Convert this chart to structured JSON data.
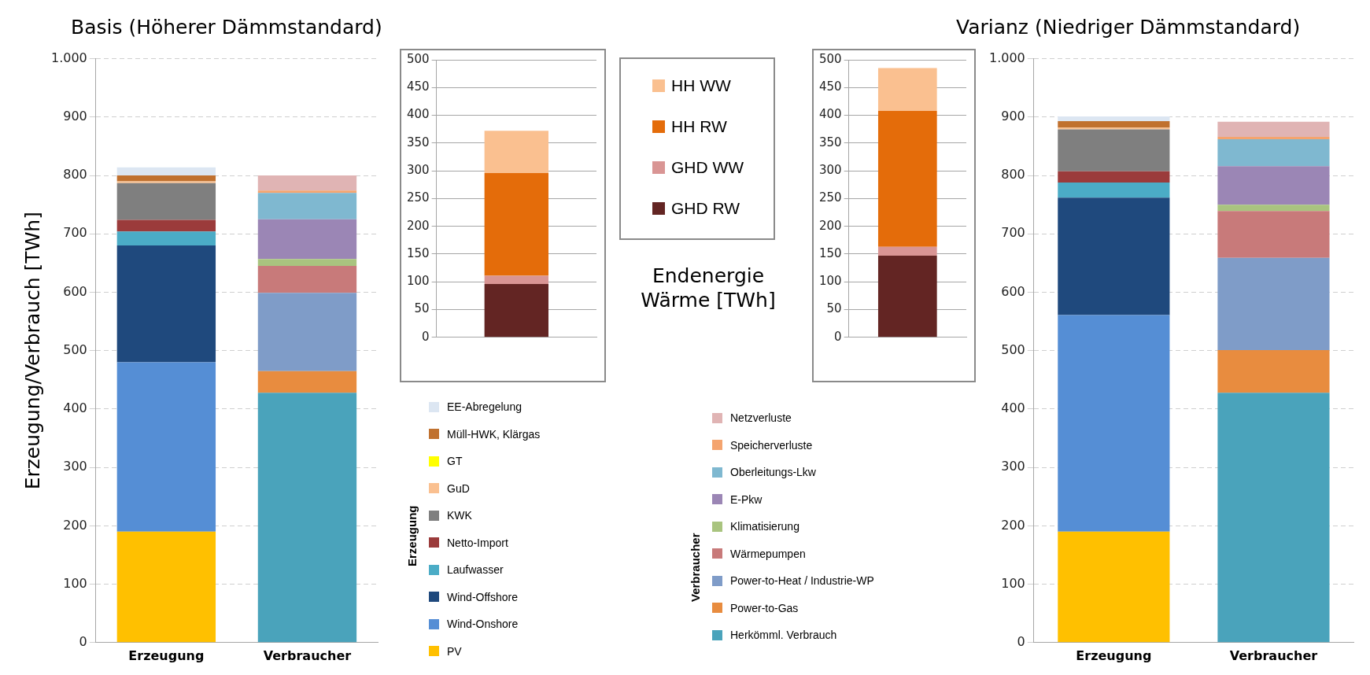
{
  "chart_data": [
    {
      "type": "bar",
      "title": "Basis (Höherer Dämmstandard)",
      "ylabel": "Erzeugung/Verbrauch [TWh]",
      "categories": [
        "Erzeugung",
        "Verbraucher"
      ],
      "stacked": true,
      "ylim": [
        0,
        1000
      ],
      "yticks": [
        0,
        100,
        200,
        300,
        400,
        500,
        600,
        700,
        800,
        900,
        {
          "value": 1000,
          "label": "1.000"
        }
      ],
      "grid": "y",
      "legend": "right",
      "annotations": [
        "Erzeugung",
        "Verbraucher"
      ],
      "series": [
        {
          "name": "PV",
          "color": "#ffc000",
          "values": [
            190,
            null
          ]
        },
        {
          "name": "Wind-Onshore",
          "color": "#558ed5",
          "values": [
            290,
            null
          ]
        },
        {
          "name": "Wind-Offshore",
          "color": "#1f497d",
          "values": [
            200,
            null
          ]
        },
        {
          "name": "Laufwasser",
          "color": "#4bacc6",
          "values": [
            24,
            null
          ]
        },
        {
          "name": "Netto-Import",
          "color": "#9b3b3b",
          "values": [
            20,
            null
          ]
        },
        {
          "name": "KWK",
          "color": "#7f7f7f",
          "values": [
            63,
            null
          ]
        },
        {
          "name": "GuD",
          "color": "#fac090",
          "values": [
            3,
            null
          ]
        },
        {
          "name": "GT",
          "color": "#ffff00",
          "values": [
            0,
            null
          ]
        },
        {
          "name": "Müll-HWK, Klärgas",
          "color": "#c0712f",
          "values": [
            10,
            null
          ]
        },
        {
          "name": "EE-Abregelung",
          "color": "#dce6f2",
          "values": [
            14,
            null
          ]
        },
        {
          "name": "Herkömml. Verbrauch",
          "color": "#4aa3bb",
          "values": [
            null,
            428
          ]
        },
        {
          "name": "Power-to-Gas",
          "color": "#e88c3f",
          "values": [
            null,
            37
          ]
        },
        {
          "name": "Power-to-Heat / Industrie-WP",
          "color": "#7f9cc8",
          "values": [
            null,
            134
          ]
        },
        {
          "name": "Wärmepumpen",
          "color": "#c87a7a",
          "values": [
            null,
            46
          ]
        },
        {
          "name": "Klimatisierung",
          "color": "#a9c47f",
          "values": [
            null,
            12
          ]
        },
        {
          "name": "E-Pkw",
          "color": "#9b86b5",
          "values": [
            null,
            68
          ]
        },
        {
          "name": "Oberleitungs-Lkw",
          "color": "#7fb8d0",
          "values": [
            null,
            45
          ]
        },
        {
          "name": "Speicherverluste",
          "color": "#f4a46f",
          "values": [
            null,
            4
          ]
        },
        {
          "name": "Netzverluste",
          "color": "#e0b4b4",
          "values": [
            null,
            26
          ]
        }
      ]
    },
    {
      "type": "bar",
      "categories": [
        null
      ],
      "stacked": true,
      "ylim": [
        0,
        500
      ],
      "yticks": [
        0,
        50,
        100,
        150,
        200,
        250,
        300,
        350,
        400,
        450,
        500
      ],
      "grid": "y",
      "legend": "right",
      "series": [
        {
          "name": "GHD RW",
          "color": "#632523",
          "values": [
            96
          ]
        },
        {
          "name": "GHD WW",
          "color": "#d99594",
          "values": [
            15
          ]
        },
        {
          "name": "HH RW",
          "color": "#e46c0a",
          "values": [
            185
          ]
        },
        {
          "name": "HH WW",
          "color": "#fac090",
          "values": [
            76
          ]
        }
      ]
    },
    {
      "type": "bar",
      "ylabel": "Endenergie Wärme [TWh]",
      "categories": [
        null
      ],
      "stacked": true,
      "ylim": [
        0,
        500
      ],
      "yticks": [
        0,
        50,
        100,
        150,
        200,
        250,
        300,
        350,
        400,
        450,
        500
      ],
      "grid": "y",
      "series": [
        {
          "color": "#632523",
          "values": [
            147
          ]
        },
        {
          "color": "#d99594",
          "values": [
            16
          ]
        },
        {
          "color": "#e46c0a",
          "values": [
            245
          ]
        },
        {
          "color": "#fac090",
          "values": [
            77
          ]
        }
      ]
    },
    {
      "type": "bar",
      "title": "Varianz (Niedriger Dämmstandard)",
      "categories": [
        "Erzeugung",
        "Verbraucher"
      ],
      "stacked": true,
      "ylim": [
        0,
        1000
      ],
      "yticks": [
        0,
        100,
        200,
        300,
        400,
        500,
        600,
        700,
        800,
        900,
        {
          "value": 1000,
          "label": "1.000"
        }
      ],
      "grid": "y",
      "series": [
        {
          "color": "#ffc000",
          "values": [
            190,
            null
          ]
        },
        {
          "color": "#558ed5",
          "values": [
            371,
            null
          ]
        },
        {
          "color": "#1f497d",
          "values": [
            201,
            null
          ]
        },
        {
          "color": "#4bacc6",
          "values": [
            26,
            null
          ]
        },
        {
          "color": "#9b3b3b",
          "values": [
            19,
            null
          ]
        },
        {
          "color": "#7f7f7f",
          "values": [
            72,
            null
          ]
        },
        {
          "color": "#fac090",
          "values": [
            3,
            null
          ]
        },
        {
          "color": "#ffff00",
          "values": [
            0,
            null
          ]
        },
        {
          "color": "#c0712f",
          "values": [
            11,
            null
          ]
        },
        {
          "color": "#dce6f2",
          "values": [
            8,
            null
          ]
        },
        {
          "color": "#4aa3bb",
          "values": [
            null,
            428
          ]
        },
        {
          "color": "#e88c3f",
          "values": [
            null,
            73
          ]
        },
        {
          "color": "#7f9cc8",
          "values": [
            null,
            158
          ]
        },
        {
          "color": "#c87a7a",
          "values": [
            null,
            80
          ]
        },
        {
          "color": "#a9c47f",
          "values": [
            null,
            11
          ]
        },
        {
          "color": "#9b86b5",
          "values": [
            null,
            66
          ]
        },
        {
          "color": "#7fb8d0",
          "values": [
            null,
            46
          ]
        },
        {
          "color": "#f4a46f",
          "values": [
            null,
            4
          ]
        },
        {
          "color": "#e0b4b4",
          "values": [
            null,
            26
          ]
        }
      ]
    }
  ]
}
